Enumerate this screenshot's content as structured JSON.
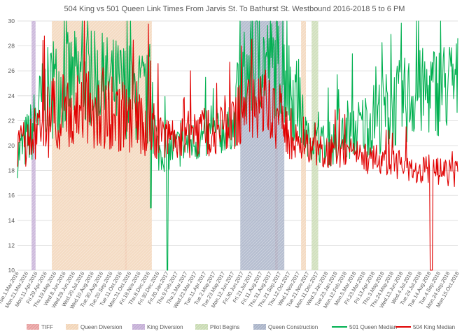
{
  "chart_data": {
    "type": "line",
    "title": "504 King vs 501 Queen Link Times From Jarvis St. To Bathurst St. Westbound 2016-2018 5 to 6 PM",
    "xlabel": "",
    "ylabel": "",
    "ylim": [
      10,
      30
    ],
    "yticks": [
      10,
      12,
      14,
      16,
      18,
      20,
      22,
      24,
      26,
      28,
      30
    ],
    "grid": true,
    "legend_position": "bottom",
    "x_tick_labels": [
      "Tue.1.Mar.2016",
      "Mon.21.Mar.2016",
      "Mon.11.Apr.2016",
      "Fri.29.Apr.2016",
      "Thu.19.May.2016",
      "Wed.8.Jun.2016",
      "Wed.29.Jun.2016",
      "Wed.20.Jul.2016",
      "Wed.10.Aug.2016",
      "Tue.30.Aug.2016",
      "Tue.20.Sep.2016",
      "Tue.11.Oct.2016",
      "Mon.31.Oct.2016",
      "Fri.18.Nov.2016",
      "Thu.8.Dec.2016",
      "Fri.30.Dec.2016",
      "Fri.20.Jan.2017",
      "Thu.9.Feb.2017",
      "Thu.2.Mar.2017",
      "Wed.22.Mar.2017",
      "Tue.11.Apr.2017",
      "Tue.2.May.2017",
      "Tue.23.May.2017",
      "Mon.12.Jun.2017",
      "Fri.30.Jun.2017",
      "Fri.21.Jul.2017",
      "Fri.11.Aug.2017",
      "Thu.31.Aug.2017",
      "Thu.21.Sep.2017",
      "Thu.12.Oct.2017",
      "Wed.1.Nov.2017",
      "Tue.21.Nov.2017",
      "Mon.11.Dec.2017",
      "Wed.3.Jan.2018",
      "Tue.23.Jan.2018",
      "Mon.12.Feb.2018",
      "Mon.5.Mar.2018",
      "Fri.23.Mar.2018",
      "Fri.13.Apr.2018",
      "Thu.3.May.2018",
      "Thu.24.May.2018",
      "Wed.13.Jun.2018",
      "Wed.4.Jul.2018",
      "Tue.24.Jul.2018",
      "Tue.14.Aug.2018",
      "Tue.4.Sep.2018",
      "Mon.24.Sep.2018",
      "Mon.15.Oct.2018"
    ],
    "periods": [
      {
        "name": "TIFF",
        "color": "#e8a0a0",
        "start": 0.244,
        "end": 0.248
      },
      {
        "name": "TIFF",
        "color": "#e8a0a0",
        "start": 0.585,
        "end": 0.591
      },
      {
        "name": "Queen Diversion",
        "color": "#f2d5b8",
        "start": 0.078,
        "end": 0.305
      },
      {
        "name": "Queen Diversion",
        "color": "#f2d5b8",
        "start": 0.644,
        "end": 0.655
      },
      {
        "name": "King Diversion",
        "color": "#c4aed6",
        "start": 0.032,
        "end": 0.041
      },
      {
        "name": "Pilot Begins",
        "color": "#c9dbb3",
        "start": 0.668,
        "end": 0.683
      },
      {
        "name": "Queen Construction",
        "color": "#a9b3c8",
        "start": 0.506,
        "end": 0.606
      }
    ],
    "series": [
      {
        "name": "501 Queen Median",
        "color": "#00b050",
        "seed": 7,
        "points": [
          [
            0,
            19.2
          ],
          [
            0.03,
            21
          ],
          [
            0.06,
            24
          ],
          [
            0.1,
            25
          ],
          [
            0.15,
            25.5
          ],
          [
            0.2,
            25
          ],
          [
            0.25,
            24.5
          ],
          [
            0.3,
            23.5
          ],
          [
            0.32,
            19.5
          ],
          [
            0.36,
            19.8
          ],
          [
            0.4,
            20.3
          ],
          [
            0.45,
            20.8
          ],
          [
            0.49,
            21.5
          ],
          [
            0.51,
            25
          ],
          [
            0.55,
            27
          ],
          [
            0.6,
            26
          ],
          [
            0.63,
            24
          ],
          [
            0.66,
            20.5
          ],
          [
            0.7,
            20
          ],
          [
            0.75,
            20.8
          ],
          [
            0.8,
            22
          ],
          [
            0.85,
            23
          ],
          [
            0.9,
            24
          ],
          [
            0.95,
            24.5
          ],
          [
            1,
            25
          ]
        ],
        "amp": [
          [
            0,
            1.8
          ],
          [
            0.08,
            4
          ],
          [
            0.3,
            4
          ],
          [
            0.32,
            1.7
          ],
          [
            0.49,
            1.8
          ],
          [
            0.51,
            4.5
          ],
          [
            0.63,
            4
          ],
          [
            0.66,
            1.4
          ],
          [
            0.75,
            2.2
          ],
          [
            0.85,
            3.5
          ],
          [
            1,
            4
          ]
        ],
        "spikes": [
          [
            0.341,
            10
          ],
          [
            0.303,
            15
          ]
        ]
      },
      {
        "name": "504 King Median",
        "color": "#e00000",
        "seed": 13,
        "points": [
          [
            0,
            19.8
          ],
          [
            0.03,
            20.5
          ],
          [
            0.06,
            21.5
          ],
          [
            0.1,
            22.8
          ],
          [
            0.15,
            23
          ],
          [
            0.2,
            22.5
          ],
          [
            0.25,
            22.3
          ],
          [
            0.3,
            22
          ],
          [
            0.33,
            20.5
          ],
          [
            0.38,
            20.8
          ],
          [
            0.43,
            21.2
          ],
          [
            0.48,
            21.8
          ],
          [
            0.52,
            22.8
          ],
          [
            0.56,
            23
          ],
          [
            0.6,
            22
          ],
          [
            0.64,
            20.2
          ],
          [
            0.68,
            19.5
          ],
          [
            0.72,
            19.5
          ],
          [
            0.76,
            19.3
          ],
          [
            0.8,
            19
          ],
          [
            0.85,
            18.6
          ],
          [
            0.9,
            18.1
          ],
          [
            0.95,
            18.1
          ],
          [
            1,
            17.6
          ]
        ],
        "amp": [
          [
            0,
            1.5
          ],
          [
            0.08,
            3.2
          ],
          [
            0.3,
            3
          ],
          [
            0.33,
            1.6
          ],
          [
            0.5,
            2.5
          ],
          [
            0.6,
            3
          ],
          [
            0.64,
            1.4
          ],
          [
            0.72,
            1.3
          ],
          [
            0.8,
            1.3
          ],
          [
            0.9,
            1.2
          ],
          [
            1,
            1.2
          ]
        ],
        "spikes": [
          [
            0.939,
            10
          ],
          [
            0.941,
            10
          ]
        ]
      }
    ]
  }
}
